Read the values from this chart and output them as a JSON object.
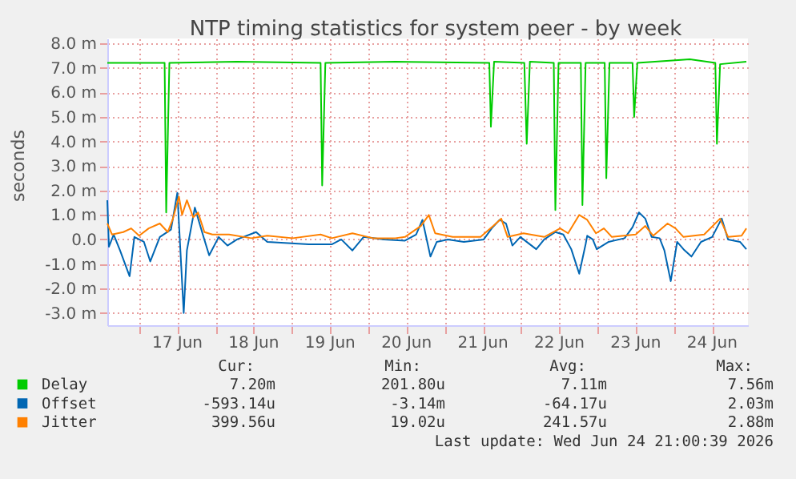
{
  "chart_data": {
    "type": "line",
    "title": "NTP timing statistics for system peer - by week",
    "ylabel": "seconds",
    "xlim": [
      "2026-06-16T14:00",
      "2026-06-24T23:15"
    ],
    "xticks": [
      {
        "value": "2026-06-17T00:00",
        "label": null
      },
      {
        "value": "2026-06-17T12:00",
        "label": "17 Jun"
      },
      {
        "value": "2026-06-18T00:00",
        "label": null
      },
      {
        "value": "2026-06-18T12:00",
        "label": "18 Jun"
      },
      {
        "value": "2026-06-19T00:00",
        "label": null
      },
      {
        "value": "2026-06-19T12:00",
        "label": "19 Jun"
      },
      {
        "value": "2026-06-20T00:00",
        "label": null
      },
      {
        "value": "2026-06-20T12:00",
        "label": "20 Jun"
      },
      {
        "value": "2026-06-21T00:00",
        "label": null
      },
      {
        "value": "2026-06-21T12:00",
        "label": "21 Jun"
      },
      {
        "value": "2026-06-22T00:00",
        "label": null
      },
      {
        "value": "2026-06-22T12:00",
        "label": "22 Jun"
      },
      {
        "value": "2026-06-23T00:00",
        "label": null
      },
      {
        "value": "2026-06-23T12:00",
        "label": "23 Jun"
      },
      {
        "value": "2026-06-24T00:00",
        "label": null
      },
      {
        "value": "2026-06-24T12:00",
        "label": "24 Jun"
      }
    ],
    "ylim": [
      -3.5,
      8.2
    ],
    "yticks": [
      {
        "value": -3,
        "label": "-3.0 m"
      },
      {
        "value": -2,
        "label": "-2.0 m"
      },
      {
        "value": -1,
        "label": "-1.0 m"
      },
      {
        "value": 0,
        "label": "0.0"
      },
      {
        "value": 1,
        "label": "1.0 m"
      },
      {
        "value": 2,
        "label": "2.0 m"
      },
      {
        "value": 3,
        "label": "3.0 m"
      },
      {
        "value": 4,
        "label": "4.0 m"
      },
      {
        "value": 5,
        "label": "5.0 m"
      },
      {
        "value": 6,
        "label": "6.0 m"
      },
      {
        "value": 7,
        "label": "7.0 m"
      },
      {
        "value": 8,
        "label": "8.0 m"
      }
    ],
    "grid": true,
    "legend": "bottom",
    "marker": "none",
    "line_style": "solid",
    "series": [
      {
        "name": "Delay",
        "color": "#00cc00",
        "x": [
          "2026-06-16T14:00",
          "2026-06-17T08:00",
          "2026-06-17T08:30",
          "2026-06-17T09:30",
          "2026-06-18T06:45",
          "2026-06-19T09:00",
          "2026-06-19T09:30",
          "2026-06-19T10:30",
          "2026-06-20T08:30",
          "2026-06-21T14:00",
          "2026-06-21T14:30",
          "2026-06-21T15:30",
          "2026-06-22T01:00",
          "2026-06-22T01:45",
          "2026-06-22T02:45",
          "2026-06-22T10:15",
          "2026-06-22T10:45",
          "2026-06-22T11:45",
          "2026-06-22T18:45",
          "2026-06-22T19:15",
          "2026-06-22T20:15",
          "2026-06-23T02:15",
          "2026-06-23T02:45",
          "2026-06-23T03:45",
          "2026-06-23T11:00",
          "2026-06-23T11:30",
          "2026-06-23T12:30",
          "2026-06-24T05:00",
          "2026-06-24T13:00",
          "2026-06-24T13:30",
          "2026-06-24T14:30",
          "2026-06-24T22:45"
        ],
        "values": [
          7.2,
          7.2,
          1.1,
          7.2,
          7.25,
          7.2,
          2.2,
          7.2,
          7.25,
          7.2,
          4.6,
          7.25,
          7.2,
          3.9,
          7.25,
          7.2,
          1.2,
          7.2,
          7.2,
          1.4,
          7.2,
          7.2,
          2.5,
          7.2,
          7.2,
          5.0,
          7.2,
          7.35,
          7.2,
          3.9,
          7.15,
          7.25
        ]
      },
      {
        "name": "Offset",
        "color": "#0066b3",
        "x": [
          "2026-06-16T14:00",
          "2026-06-16T14:30",
          "2026-06-16T16:00",
          "2026-06-16T18:00",
          "2026-06-16T21:00",
          "2026-06-16T22:30",
          "2026-06-17T01:30",
          "2026-06-17T03:30",
          "2026-06-17T06:30",
          "2026-06-17T10:00",
          "2026-06-17T12:00",
          "2026-06-17T14:00",
          "2026-06-17T15:00",
          "2026-06-17T17:30",
          "2026-06-17T20:00",
          "2026-06-17T22:00",
          "2026-06-18T01:00",
          "2026-06-18T03:45",
          "2026-06-18T06:45",
          "2026-06-18T12:45",
          "2026-06-18T16:15",
          "2026-06-18T22:45",
          "2026-06-19T05:15",
          "2026-06-19T12:30",
          "2026-06-19T15:30",
          "2026-06-19T19:00",
          "2026-06-19T22:30",
          "2026-06-20T05:00",
          "2026-06-20T11:30",
          "2026-06-20T15:00",
          "2026-06-20T17:00",
          "2026-06-20T19:30",
          "2026-06-20T21:30",
          "2026-06-21T01:00",
          "2026-06-21T06:00",
          "2026-06-21T12:15",
          "2026-06-21T14:45",
          "2026-06-21T17:15",
          "2026-06-21T19:15",
          "2026-06-21T21:15",
          "2026-06-21T23:45",
          "2026-06-22T04:45",
          "2026-06-22T07:15",
          "2026-06-22T10:45",
          "2026-06-22T13:15",
          "2026-06-22T15:45",
          "2026-06-22T18:15",
          "2026-06-22T20:15",
          "2026-06-22T20:45",
          "2026-06-22T22:30",
          "2026-06-22T23:45",
          "2026-06-23T03:30",
          "2026-06-23T08:30",
          "2026-06-23T11:00",
          "2026-06-23T13:00",
          "2026-06-23T15:00",
          "2026-06-23T17:00",
          "2026-06-23T19:30",
          "2026-06-23T21:00",
          "2026-06-23T23:00",
          "2026-06-24T01:00",
          "2026-06-24T03:00",
          "2026-06-24T05:30",
          "2026-06-24T08:30",
          "2026-06-24T12:00",
          "2026-06-24T15:00",
          "2026-06-24T17:00",
          "2026-06-24T20:45",
          "2026-06-24T22:45"
        ],
        "values": [
          1.6,
          -0.3,
          0.2,
          -0.45,
          -1.5,
          0.1,
          -0.1,
          -0.9,
          0.1,
          0.4,
          1.9,
          -3.0,
          -0.45,
          1.3,
          0.2,
          -0.65,
          0.1,
          -0.25,
          0.0,
          0.3,
          -0.1,
          -0.15,
          -0.2,
          -0.2,
          0.0,
          -0.45,
          0.1,
          0.0,
          -0.05,
          0.2,
          0.8,
          -0.7,
          -0.1,
          0.0,
          -0.1,
          0.0,
          0.45,
          0.8,
          0.65,
          -0.25,
          0.1,
          -0.4,
          0.0,
          0.3,
          0.2,
          -0.4,
          -1.4,
          -0.2,
          0.15,
          0.0,
          -0.4,
          -0.1,
          0.05,
          0.5,
          1.1,
          0.85,
          0.1,
          0.05,
          -0.45,
          -1.7,
          -0.1,
          -0.4,
          -0.7,
          -0.1,
          0.1,
          0.85,
          0.0,
          -0.1,
          -0.4
        ]
      },
      {
        "name": "Jitter",
        "color": "#ff8000",
        "x": [
          "2026-06-16T14:00",
          "2026-06-16T15:30",
          "2026-06-16T19:00",
          "2026-06-16T21:30",
          "2026-06-17T00:00",
          "2026-06-17T03:00",
          "2026-06-17T06:30",
          "2026-06-17T09:00",
          "2026-06-17T10:30",
          "2026-06-17T12:30",
          "2026-06-17T13:30",
          "2026-06-17T15:00",
          "2026-06-17T17:00",
          "2026-06-17T18:30",
          "2026-06-17T20:30",
          "2026-06-17T23:00",
          "2026-06-18T04:15",
          "2026-06-18T11:15",
          "2026-06-18T16:15",
          "2026-06-19T00:15",
          "2026-06-19T09:00",
          "2026-06-19T12:30",
          "2026-06-19T19:00",
          "2026-06-20T01:30",
          "2026-06-20T08:30",
          "2026-06-20T11:30",
          "2026-06-20T16:30",
          "2026-06-20T19:00",
          "2026-06-20T21:00",
          "2026-06-21T02:30",
          "2026-06-21T11:15",
          "2026-06-21T15:15",
          "2026-06-21T17:45",
          "2026-06-21T19:45",
          "2026-06-22T00:45",
          "2026-06-22T07:15",
          "2026-06-22T12:15",
          "2026-06-22T14:45",
          "2026-06-22T18:15",
          "2026-06-22T20:45",
          "2026-06-22T23:30",
          "2026-06-23T02:00",
          "2026-06-23T04:30",
          "2026-06-23T12:00",
          "2026-06-23T15:00",
          "2026-06-23T17:30",
          "2026-06-23T22:00",
          "2026-06-24T00:30",
          "2026-06-24T03:00",
          "2026-06-24T09:30",
          "2026-06-24T14:30",
          "2026-06-24T17:00",
          "2026-06-24T21:15",
          "2026-06-24T22:45"
        ],
        "values": [
          0.65,
          0.2,
          0.3,
          0.45,
          0.15,
          0.45,
          0.65,
          0.3,
          0.8,
          1.75,
          1.0,
          1.6,
          0.9,
          1.1,
          0.3,
          0.2,
          0.2,
          0.05,
          0.15,
          0.05,
          0.2,
          0.05,
          0.25,
          0.05,
          0.05,
          0.1,
          0.55,
          1.0,
          0.25,
          0.1,
          0.1,
          0.55,
          0.85,
          0.1,
          0.25,
          0.1,
          0.45,
          0.25,
          1.0,
          0.8,
          0.25,
          0.45,
          0.1,
          0.2,
          0.55,
          0.15,
          0.65,
          0.45,
          0.1,
          0.2,
          0.85,
          0.1,
          0.15,
          0.45
        ]
      }
    ],
    "annotations": [
      "Cur:",
      "Min:",
      "Avg:",
      "Max:",
      "7.20m",
      "201.80u",
      "7.11m",
      "7.56m",
      "-593.14u",
      "-3.14m",
      "-64.17u",
      "2.03m",
      "399.56u",
      "19.02u",
      "241.57u",
      "2.88m",
      "Last update: Wed Jun 24 21:00:39 2026"
    ]
  }
}
